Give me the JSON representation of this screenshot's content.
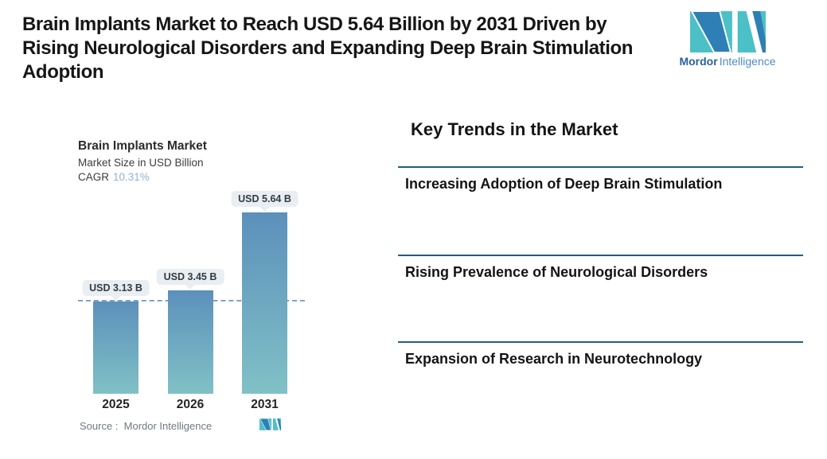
{
  "header": {
    "title_lines": [
      "Brain Implants Market to Reach USD 5.64 Billion by 2031 Driven by",
      "Rising Neurological Disorders and Expanding Deep Brain Stimulation",
      "Adoption"
    ],
    "logo": {
      "brand_bold": "Mordor",
      "brand_light": "Intelligence"
    }
  },
  "chart": {
    "title": "Brain Implants Market",
    "subtitle": "Market Size in USD Billion",
    "cagr_label": "CAGR",
    "cagr_value": "10.31%",
    "source_label": "Source :  Mordor Intelligence"
  },
  "chart_data": {
    "type": "bar",
    "title": "Brain Implants Market",
    "subtitle": "Market Size in USD Billion",
    "cagr": "10.31%",
    "unit": "USD Billion",
    "categories": [
      "2025",
      "2026",
      "2031"
    ],
    "values": [
      3.13,
      3.45,
      5.64
    ],
    "value_labels": [
      "USD 3.13 B",
      "USD 3.45 B",
      "USD 5.64 B"
    ],
    "dashed_reference_value": 3.13,
    "bar_gradient": [
      "#5c90bb",
      "#80c1c6"
    ],
    "grid": false,
    "legend": false,
    "source": "Source :  Mordor Intelligence"
  },
  "trends": {
    "heading": "Key Trends in the Market",
    "items": [
      {
        "label": "Increasing Adoption of Deep Brain Stimulation"
      },
      {
        "label": "Rising Prevalence of Neurological Disorders"
      },
      {
        "label": "Expansion of Research in Neurotechnology"
      }
    ]
  },
  "colors": {
    "headline_text": "#161616",
    "accent_teal": "#4cc0c7",
    "accent_blue": "#2e7fb5",
    "brand_text_bold": "#2a5f9e",
    "brand_text_light": "#4e8bc6",
    "cagr_value": "#8fb3d4",
    "dashed_line": "#7fa3cb",
    "value_pill_bg": "#e8eef2",
    "trend_rule": "#1e5f80",
    "source_text": "#6e7a83"
  }
}
